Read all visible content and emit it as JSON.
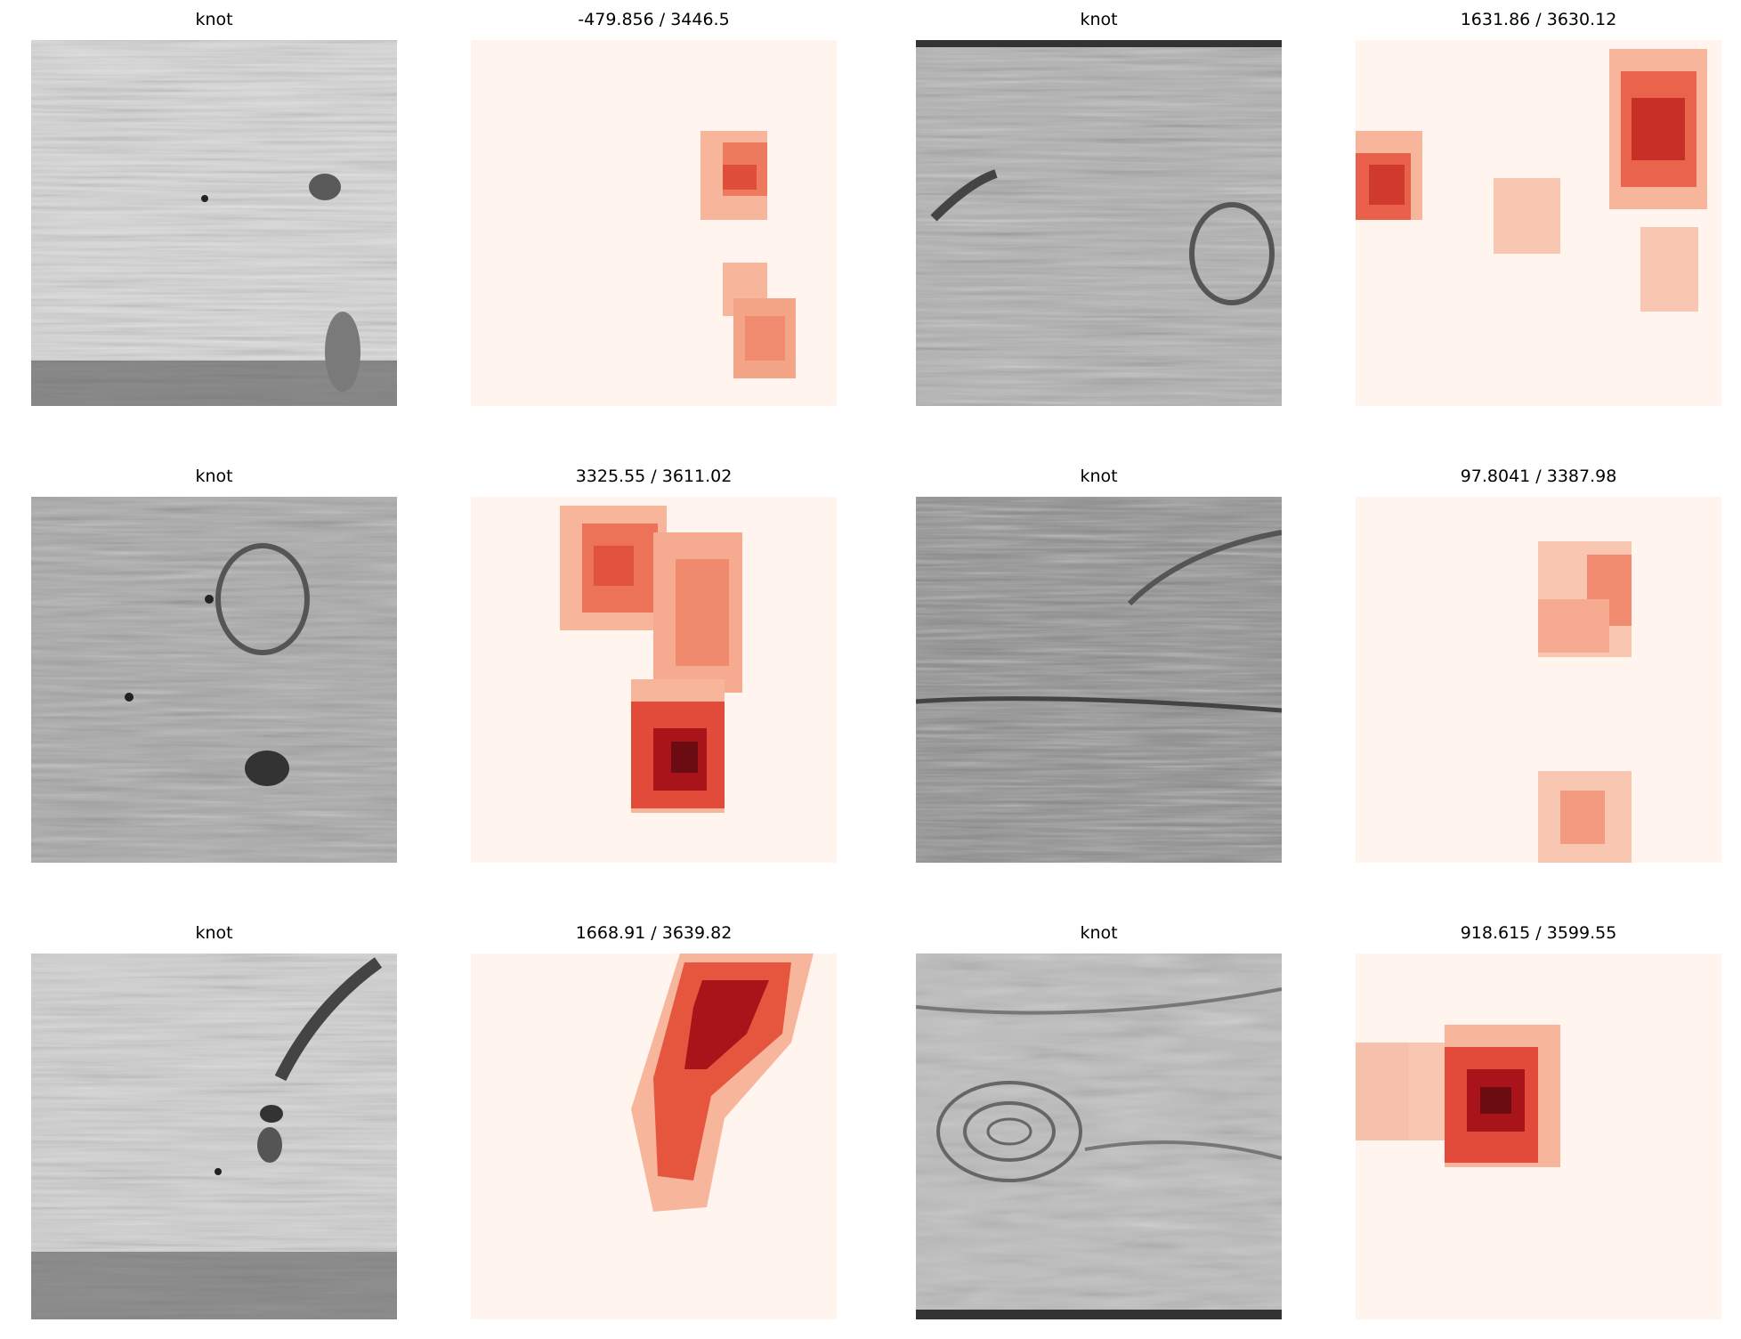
{
  "rows": [
    {
      "left": {
        "title": "knot",
        "heat_title": "-479.856 / 3446.5"
      },
      "right": {
        "title": "knot",
        "heat_title": "1631.86 / 3630.12"
      }
    },
    {
      "left": {
        "title": "knot",
        "heat_title": "3325.55 / 3611.02"
      },
      "right": {
        "title": "knot",
        "heat_title": "97.8041 / 3387.98"
      }
    },
    {
      "left": {
        "title": "knot",
        "heat_title": "1668.91 / 3639.82"
      },
      "right": {
        "title": "knot",
        "heat_title": "918.615 / 3599.55"
      }
    }
  ],
  "colors": {
    "heatmap_background": "#fff5ee",
    "heatmap_low": "#fcbba1",
    "heatmap_mid": "#ef3b2c",
    "heatmap_high": "#67000d"
  }
}
